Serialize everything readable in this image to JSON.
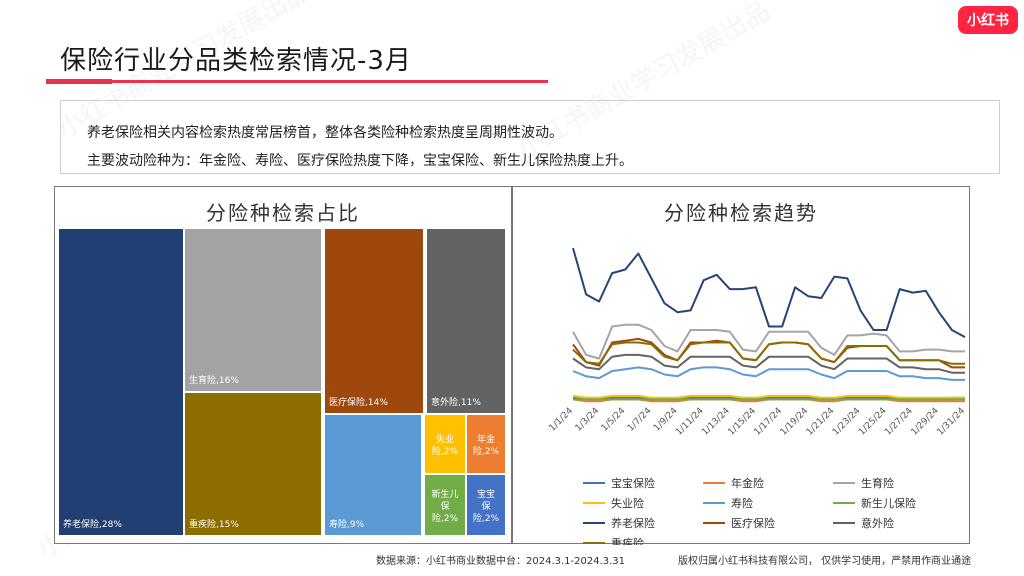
{
  "header": {
    "title": "保险行业分品类检索情况-3月",
    "logo": "小红书"
  },
  "summary": {
    "line1": "养老保险相关内容检索热度常居榜首，整体各类险种检索热度呈周期性波动。",
    "line2": "主要波动险种为：年金险、寿险、医疗保险热度下降，宝宝保险、新生儿保险热度上升。"
  },
  "watermark": "小红书商业学习发展出品",
  "footer": {
    "source": "数据来源：小红书商业数据中台：2024.3.1-2024.3.31",
    "copyright": "版权归属小红书科技有限公司，  仅供学习使用，严禁用作商业通途"
  },
  "chart_data": [
    {
      "type": "treemap",
      "title": "分险种检索占比",
      "items": [
        {
          "label": "养老保险,28%",
          "name": "养老保险",
          "value": 28,
          "color": "#213f73"
        },
        {
          "label": "生育险,16%",
          "name": "生育险",
          "value": 16,
          "color": "#a3a3a3"
        },
        {
          "label": "重疾险,15%",
          "name": "重疾险",
          "value": 15,
          "color": "#8d6c00"
        },
        {
          "label": "医疗保险,14%",
          "name": "医疗保险",
          "value": 14,
          "color": "#9e480e"
        },
        {
          "label": "意外险,11%",
          "name": "意外险",
          "value": 11,
          "color": "#636363"
        },
        {
          "label": "寿险,9%",
          "name": "寿险",
          "value": 9,
          "color": "#5b9bd5"
        },
        {
          "label": "失业险,2%",
          "name": "失业险",
          "value": 2,
          "color": "#ffc000"
        },
        {
          "label": "年金险,2%",
          "name": "年金险",
          "value": 2,
          "color": "#ed7d31"
        },
        {
          "label": "新生儿保险,2%",
          "name": "新生儿保险",
          "value": 2,
          "color": "#70ad47"
        },
        {
          "label": "宝宝保险,2%",
          "name": "宝宝保险",
          "value": 2,
          "color": "#4472c4"
        }
      ]
    },
    {
      "type": "line",
      "title": "分险种检索趋势",
      "x_ticks": [
        "1/1/24",
        "1/3/24",
        "1/5/24",
        "1/7/24",
        "1/9/24",
        "1/11/24",
        "1/13/24",
        "1/15/24",
        "1/17/24",
        "1/19/24",
        "1/21/24",
        "1/23/24",
        "1/25/24",
        "1/27/24",
        "1/29/24",
        "1/31/24"
      ],
      "x": [
        1,
        2,
        3,
        4,
        5,
        6,
        7,
        8,
        9,
        10,
        11,
        12,
        13,
        14,
        15,
        16,
        17,
        18,
        19,
        20,
        21,
        22,
        23,
        24,
        25,
        26,
        27,
        28,
        29,
        30,
        31
      ],
      "ylim": [
        0,
        100
      ],
      "grid": false,
      "legend_position": "bottom",
      "series": [
        {
          "name": "宝宝保险",
          "color": "#4472c4",
          "values": [
            3,
            2,
            2,
            3,
            3,
            3,
            2,
            2,
            2,
            3,
            3,
            3,
            3,
            2,
            2,
            3,
            3,
            3,
            3,
            2,
            2,
            3,
            3,
            3,
            3,
            2,
            2,
            2,
            2,
            3,
            3
          ]
        },
        {
          "name": "年金险",
          "color": "#ed7d31",
          "values": [
            2,
            1,
            1,
            2,
            2,
            2,
            1,
            1,
            1,
            2,
            2,
            2,
            2,
            1,
            1,
            2,
            2,
            2,
            2,
            1,
            1,
            2,
            2,
            2,
            2,
            1,
            1,
            1,
            1,
            1,
            1
          ]
        },
        {
          "name": "生育险",
          "color": "#a5a5a5",
          "values": [
            40,
            27,
            25,
            43,
            44,
            44,
            41,
            32,
            29,
            41,
            41,
            41,
            40,
            30,
            29,
            40,
            40,
            40,
            40,
            31,
            27,
            38,
            38,
            39,
            38,
            29,
            29,
            30,
            30,
            29,
            29
          ]
        },
        {
          "name": "失业险",
          "color": "#ffc000",
          "values": [
            4,
            3,
            3,
            4,
            4,
            4,
            3,
            3,
            3,
            4,
            4,
            4,
            4,
            3,
            3,
            4,
            4,
            4,
            4,
            3,
            3,
            4,
            4,
            4,
            4,
            3,
            3,
            3,
            3,
            3,
            3
          ]
        },
        {
          "name": "寿险",
          "color": "#5b9bd5",
          "values": [
            18,
            15,
            14,
            18,
            19,
            20,
            19,
            16,
            15,
            19,
            20,
            20,
            19,
            16,
            15,
            19,
            19,
            19,
            19,
            16,
            14,
            18,
            18,
            18,
            18,
            15,
            15,
            14,
            14,
            13,
            13
          ]
        },
        {
          "name": "新生儿保险",
          "color": "#70ad47",
          "values": [
            2,
            2,
            2,
            2,
            2,
            2,
            2,
            2,
            2,
            2,
            2,
            2,
            2,
            2,
            2,
            2,
            2,
            2,
            2,
            2,
            2,
            2,
            2,
            2,
            2,
            2,
            2,
            2,
            2,
            2,
            2
          ]
        },
        {
          "name": "养老保险",
          "color": "#264478",
          "values": [
            87,
            61,
            57,
            73,
            75,
            84,
            70,
            56,
            51,
            52,
            69,
            72,
            64,
            64,
            65,
            43,
            43,
            65,
            60,
            59,
            71,
            70,
            52,
            41,
            41,
            64,
            62,
            63,
            51,
            41,
            37
          ]
        },
        {
          "name": "医疗保险",
          "color": "#9e480e",
          "values": [
            33,
            23,
            21,
            34,
            35,
            36,
            34,
            27,
            24,
            34,
            34,
            35,
            34,
            25,
            24,
            33,
            34,
            34,
            33,
            25,
            23,
            31,
            32,
            32,
            32,
            24,
            24,
            24,
            24,
            20,
            20
          ]
        },
        {
          "name": "意外险",
          "color": "#636363",
          "values": [
            25,
            20,
            19,
            26,
            27,
            27,
            26,
            21,
            20,
            26,
            26,
            26,
            26,
            21,
            20,
            26,
            26,
            26,
            26,
            21,
            19,
            25,
            25,
            25,
            25,
            20,
            20,
            19,
            19,
            17,
            17
          ]
        },
        {
          "name": "重疾险",
          "color": "#8d6c00",
          "values": [
            30,
            23,
            22,
            33,
            34,
            34,
            33,
            26,
            24,
            33,
            34,
            34,
            34,
            25,
            24,
            33,
            34,
            34,
            33,
            25,
            23,
            32,
            32,
            32,
            32,
            24,
            24,
            24,
            24,
            22,
            22
          ]
        }
      ]
    }
  ]
}
